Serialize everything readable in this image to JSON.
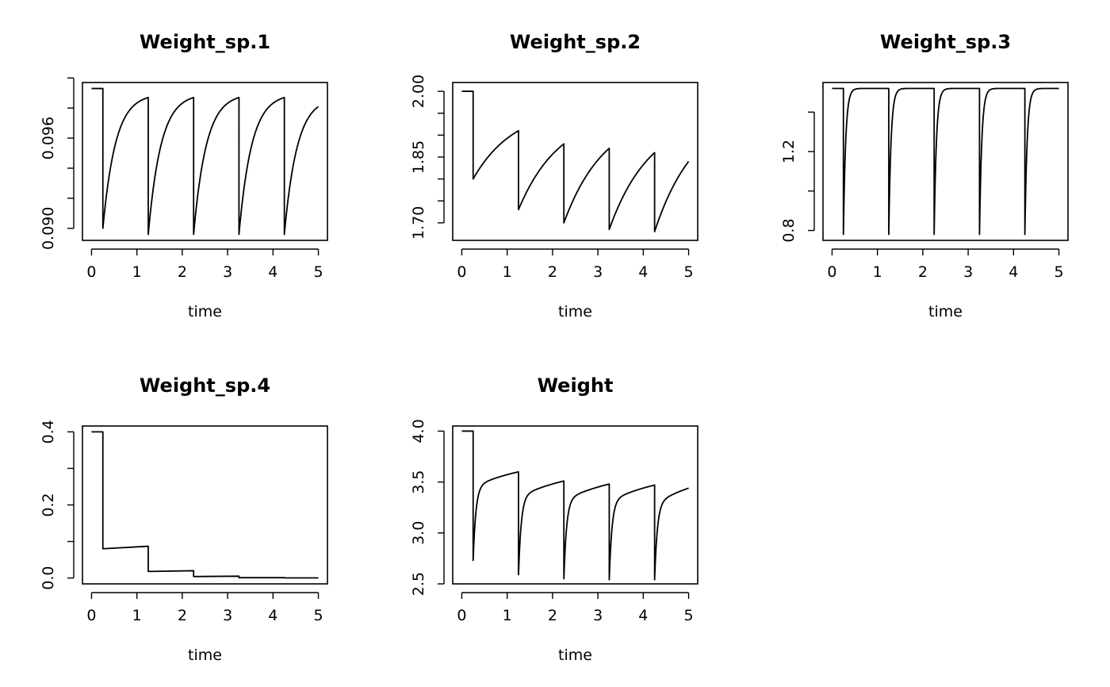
{
  "chart_data": [
    {
      "type": "line",
      "title": "Weight_sp.1",
      "xlabel": "time",
      "ylabel": "",
      "xlim": [
        -0.2,
        5.2
      ],
      "ylim": [
        0.0892,
        0.0997
      ],
      "xticks": [
        0,
        1,
        2,
        3,
        4,
        5
      ],
      "xtick_labels": [
        "0",
        "1",
        "2",
        "3",
        "4",
        "5"
      ],
      "yticks": [
        0.09,
        0.092,
        0.094,
        0.096,
        0.098,
        0.1
      ],
      "yticks_labeled": [
        0.09,
        0.096
      ],
      "ytick_labels": [
        "0.090",
        "0.096"
      ],
      "series": [
        {
          "x": [
            0,
            0.25,
            0.25,
            1.25,
            1.25,
            2.25,
            2.25,
            3.25,
            3.25,
            4.25,
            4.25,
            5
          ],
          "y": [
            0.0993,
            0.0993,
            0.09,
            0.0987,
            0.0896,
            0.0987,
            0.0896,
            0.0987,
            0.0896,
            0.0987,
            0.0896,
            0.0981
          ],
          "shape": [
            "step",
            "drop",
            "recover",
            "drop",
            "recover",
            "drop",
            "recover",
            "drop",
            "recover",
            "drop",
            "recover"
          ],
          "tau": 0.28
        }
      ]
    },
    {
      "type": "line",
      "title": "Weight_sp.2",
      "xlabel": "time",
      "ylabel": "",
      "xlim": [
        -0.2,
        5.2
      ],
      "ylim": [
        1.66,
        2.02
      ],
      "xticks": [
        0,
        1,
        2,
        3,
        4,
        5
      ],
      "xtick_labels": [
        "0",
        "1",
        "2",
        "3",
        "4",
        "5"
      ],
      "yticks": [
        1.7,
        1.75,
        1.8,
        1.85,
        1.9,
        1.95,
        2.0
      ],
      "yticks_labeled": [
        1.7,
        1.85,
        2.0
      ],
      "ytick_labels": [
        "1.70",
        "1.85",
        "2.00"
      ],
      "series": [
        {
          "x": [
            0,
            0.25,
            0.25,
            1.25,
            1.25,
            2.25,
            2.25,
            3.25,
            3.25,
            4.25,
            4.25,
            5
          ],
          "y": [
            2.0,
            2.0,
            1.8,
            1.91,
            1.73,
            1.88,
            1.7,
            1.87,
            1.685,
            1.86,
            1.68,
            1.84
          ],
          "shape": [
            "step",
            "drop",
            "recover",
            "drop",
            "recover",
            "drop",
            "recover",
            "drop",
            "recover",
            "drop",
            "recover"
          ],
          "tau": 0.9
        }
      ]
    },
    {
      "type": "line",
      "title": "Weight_sp.3",
      "xlabel": "time",
      "ylabel": "",
      "xlim": [
        -0.2,
        5.2
      ],
      "ylim": [
        0.75,
        1.55
      ],
      "xticks": [
        0,
        1,
        2,
        3,
        4,
        5
      ],
      "xtick_labels": [
        "0",
        "1",
        "2",
        "3",
        "4",
        "5"
      ],
      "yticks": [
        0.8,
        1.0,
        1.2,
        1.4
      ],
      "yticks_labeled": [
        0.8,
        1.2
      ],
      "ytick_labels": [
        "0.8",
        "1.2"
      ],
      "series": [
        {
          "x": [
            0,
            0.25,
            0.25,
            1.25,
            1.25,
            2.25,
            2.25,
            3.25,
            3.25,
            4.25,
            4.25,
            5
          ],
          "y": [
            1.52,
            1.52,
            0.78,
            1.52,
            0.78,
            1.52,
            0.78,
            1.52,
            0.78,
            1.52,
            0.78,
            1.52
          ],
          "shape": [
            "step",
            "drop",
            "recover",
            "drop",
            "recover",
            "drop",
            "recover",
            "drop",
            "recover",
            "drop",
            "recover"
          ],
          "tau": 0.05
        }
      ]
    },
    {
      "type": "line",
      "title": "Weight_sp.4",
      "xlabel": "time",
      "ylabel": "",
      "xlim": [
        -0.2,
        5.2
      ],
      "ylim": [
        -0.016,
        0.416
      ],
      "xticks": [
        0,
        1,
        2,
        3,
        4,
        5
      ],
      "xtick_labels": [
        "0",
        "1",
        "2",
        "3",
        "4",
        "5"
      ],
      "yticks": [
        0.0,
        0.1,
        0.2,
        0.3,
        0.4
      ],
      "yticks_labeled": [
        0.0,
        0.2,
        0.4
      ],
      "ytick_labels": [
        "0.0",
        "0.2",
        "0.4"
      ],
      "series": [
        {
          "x": [
            0,
            0.25,
            0.25,
            1.25,
            1.25,
            2.25,
            2.25,
            3.25,
            3.25,
            4.25,
            4.25,
            5
          ],
          "y": [
            0.4,
            0.4,
            0.08,
            0.087,
            0.018,
            0.02,
            0.004,
            0.005,
            0.001,
            0.001,
            0.0003,
            0.0003
          ],
          "shape": [
            "step",
            "drop",
            "step",
            "drop",
            "step",
            "drop",
            "step",
            "drop",
            "step",
            "drop",
            "step"
          ],
          "tau": 1
        }
      ]
    },
    {
      "type": "line",
      "title": "Weight",
      "xlabel": "time",
      "ylabel": "",
      "xlim": [
        -0.2,
        5.2
      ],
      "ylim": [
        2.5,
        4.05
      ],
      "xticks": [
        0,
        1,
        2,
        3,
        4,
        5
      ],
      "xtick_labels": [
        "0",
        "1",
        "2",
        "3",
        "4",
        "5"
      ],
      "yticks": [
        2.5,
        3.0,
        3.5,
        4.0
      ],
      "yticks_labeled": [
        2.5,
        3.0,
        3.5,
        4.0
      ],
      "ytick_labels": [
        "2.5",
        "3.0",
        "3.5",
        "4.0"
      ],
      "series": [
        {
          "x": [
            0,
            0.25,
            0.25,
            1.25,
            1.25,
            2.25,
            2.25,
            3.25,
            3.25,
            4.25,
            4.25,
            5
          ],
          "y": [
            4.0,
            4.0,
            2.73,
            3.6,
            2.59,
            3.51,
            2.55,
            3.48,
            2.54,
            3.47,
            2.54,
            3.44
          ],
          "shape": [
            "step",
            "drop",
            "recover2",
            "drop",
            "recover2",
            "drop",
            "recover2",
            "drop",
            "recover2",
            "drop",
            "recover2"
          ],
          "tau": 0.06,
          "tau_slow": 1.4
        }
      ]
    }
  ]
}
